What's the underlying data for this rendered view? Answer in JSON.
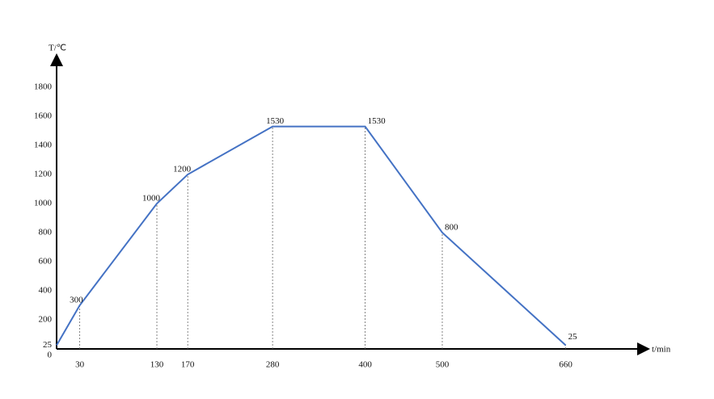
{
  "chart_data": {
    "type": "line",
    "x_label": "t/min",
    "y_label": "T/℃",
    "x": [
      0,
      30,
      130,
      170,
      280,
      400,
      500,
      660
    ],
    "series": [
      {
        "color": "#4472c4",
        "values": [
          25,
          300,
          1000,
          1200,
          1530,
          1530,
          800,
          25
        ]
      }
    ],
    "xlim": [
      0,
      760
    ],
    "ylim": [
      0,
      2000
    ],
    "xticks": [
      30,
      130,
      170,
      280,
      400,
      500,
      660
    ],
    "yticks": [
      0,
      25,
      200,
      400,
      600,
      800,
      1000,
      1200,
      1400,
      1600,
      1800
    ],
    "drop_lines": true
  }
}
